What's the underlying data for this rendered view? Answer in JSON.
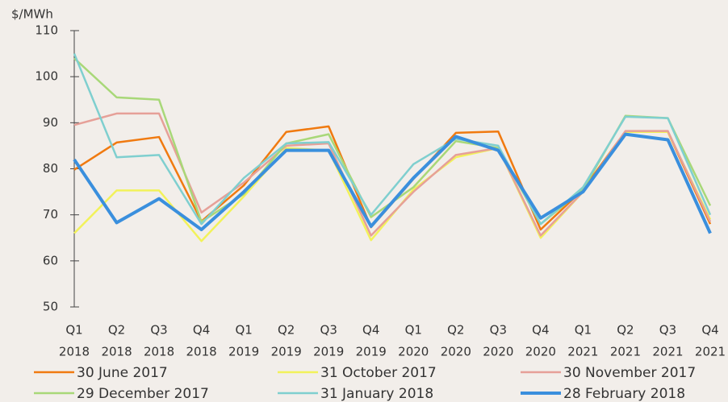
{
  "chart_data": {
    "type": "line",
    "ylabel": "$/MWh",
    "categories": [
      [
        "Q1",
        "2018"
      ],
      [
        "Q2",
        "2018"
      ],
      [
        "Q3",
        "2018"
      ],
      [
        "Q4",
        "2018"
      ],
      [
        "Q1",
        "2019"
      ],
      [
        "Q2",
        "2019"
      ],
      [
        "Q3",
        "2019"
      ],
      [
        "Q4",
        "2019"
      ],
      [
        "Q1",
        "2020"
      ],
      [
        "Q2",
        "2020"
      ],
      [
        "Q3",
        "2020"
      ],
      [
        "Q4",
        "2020"
      ],
      [
        "Q1",
        "2021"
      ],
      [
        "Q2",
        "2021"
      ],
      [
        "Q3",
        "2021"
      ],
      [
        "Q4",
        "2021"
      ]
    ],
    "ylim": [
      50,
      110
    ],
    "yticks": [
      50,
      60,
      70,
      80,
      90,
      100,
      110
    ],
    "grid": false,
    "legend": "bottom",
    "series": [
      {
        "name": "30 June 2017",
        "color": "#f07a10",
        "width": 2.5,
        "values": [
          79.8,
          85.7,
          86.9,
          68.6,
          76.4,
          88,
          89.2,
          67.3,
          77.8,
          87.8,
          88.1,
          66.8,
          75.5,
          88.1,
          88,
          68
        ]
      },
      {
        "name": "31 October 2017",
        "color": "#f2f25a",
        "width": 2.5,
        "values": [
          66,
          75.3,
          75.3,
          64.3,
          74,
          84.5,
          84,
          64.5,
          75.5,
          82.5,
          84.5,
          65,
          75,
          88,
          88,
          69
        ]
      },
      {
        "name": "30 November 2017",
        "color": "#e6a098",
        "width": 2.5,
        "values": [
          89.5,
          92,
          92,
          70.5,
          77,
          85,
          85.5,
          65.5,
          75,
          83,
          84.5,
          65.5,
          75,
          88.2,
          88.2,
          68.5
        ]
      },
      {
        "name": "29 December 2017",
        "color": "#a8d878",
        "width": 2.5,
        "values": [
          104,
          95.5,
          95,
          68.5,
          74.5,
          85.5,
          87.5,
          69.5,
          76,
          86,
          84.5,
          68,
          75.5,
          91.5,
          91,
          72
        ]
      },
      {
        "name": "31 January 2018",
        "color": "#7fcfcf",
        "width": 2.5,
        "values": [
          105,
          82.5,
          83,
          68,
          78,
          85.5,
          85.8,
          70,
          81,
          86.5,
          85,
          68,
          76,
          91.3,
          91,
          70
        ]
      },
      {
        "name": "28 February 2018",
        "color": "#3a8fdd",
        "width": 4,
        "values": [
          82,
          68.3,
          73.5,
          66.8,
          75,
          84,
          84,
          67.5,
          78,
          87,
          84,
          69.3,
          75,
          87.5,
          86.3,
          66
        ]
      }
    ]
  }
}
